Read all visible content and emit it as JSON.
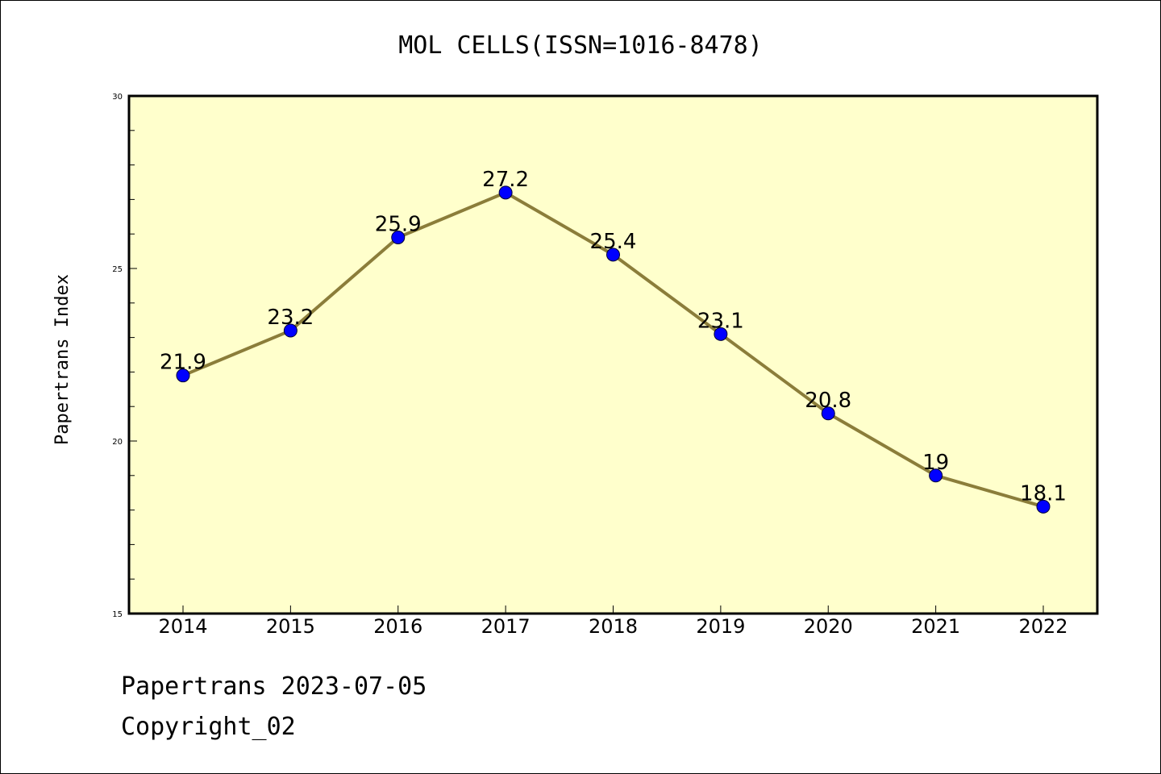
{
  "chart_data": {
    "type": "line",
    "title": "MOL CELLS(ISSN=1016-8478)",
    "ylabel": "Papertrans Index",
    "xlabel": "",
    "categories": [
      "2014",
      "2015",
      "2016",
      "2017",
      "2018",
      "2019",
      "2020",
      "2021",
      "2022"
    ],
    "values": [
      21.9,
      23.2,
      25.9,
      27.2,
      25.4,
      23.1,
      20.8,
      19,
      18.1
    ],
    "data_labels": [
      "21.9",
      "23.2",
      "25.9",
      "27.2",
      "25.4",
      "23.1",
      "20.8",
      "19",
      "18.1"
    ],
    "ylim": [
      15,
      30
    ],
    "yticks": [
      15,
      20,
      25,
      30
    ],
    "grid": false,
    "colors": {
      "plot_background": "#ffffcc",
      "line": "#8b7d3a",
      "marker": "#0000ff"
    }
  },
  "footer": {
    "line1": "Papertrans 2023-07-05",
    "line2": "Copyright_02"
  }
}
